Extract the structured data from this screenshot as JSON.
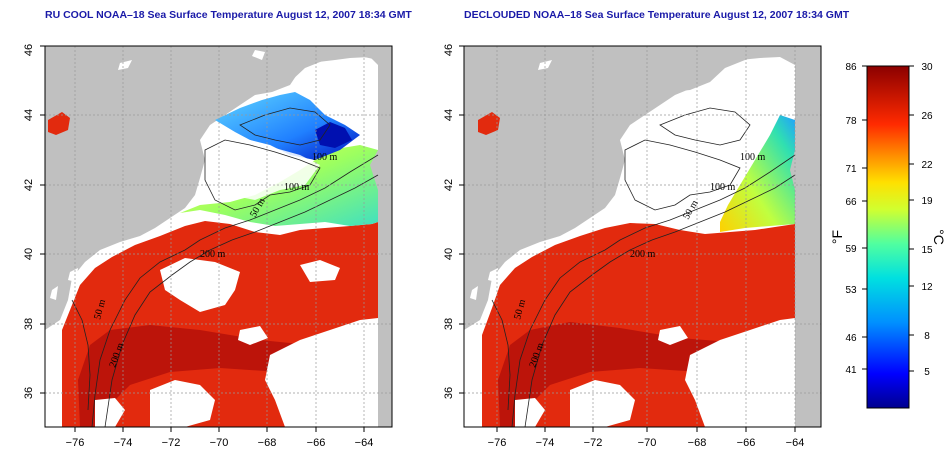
{
  "panels": [
    {
      "title": "RU COOL NOAA–18 Sea Surface Temperature August 12, 2007 18:34 GMT"
    },
    {
      "title": "DECLOUDED NOAA–18 Sea Surface Temperature August 12, 2007 18:34 GMT"
    }
  ],
  "axes": {
    "lon_ticks": [
      "−76",
      "−74",
      "−72",
      "−70",
      "−68",
      "−66",
      "−64"
    ],
    "lat_ticks": [
      "36",
      "38",
      "40",
      "42",
      "44",
      "46"
    ],
    "lon_range": [
      -77,
      -63
    ],
    "lat_range": [
      35,
      46
    ]
  },
  "contour_labels": [
    "100 m",
    "100 m",
    "50 m",
    "200 m",
    "50 m",
    "200 m"
  ],
  "colorbar": {
    "f_labels": [
      "86",
      "78",
      "71",
      "66",
      "59",
      "53",
      "46",
      "41"
    ],
    "c_labels": [
      "30",
      "26",
      "22",
      "19",
      "15",
      "12",
      "8",
      "5"
    ],
    "f_unit": "°F",
    "c_unit": "°C",
    "range_c": [
      2,
      30
    ]
  },
  "colors": {
    "land": "#c0c0c0",
    "title": "#1a1aa8",
    "warm": "#d41f0a",
    "cold": "#000099"
  }
}
